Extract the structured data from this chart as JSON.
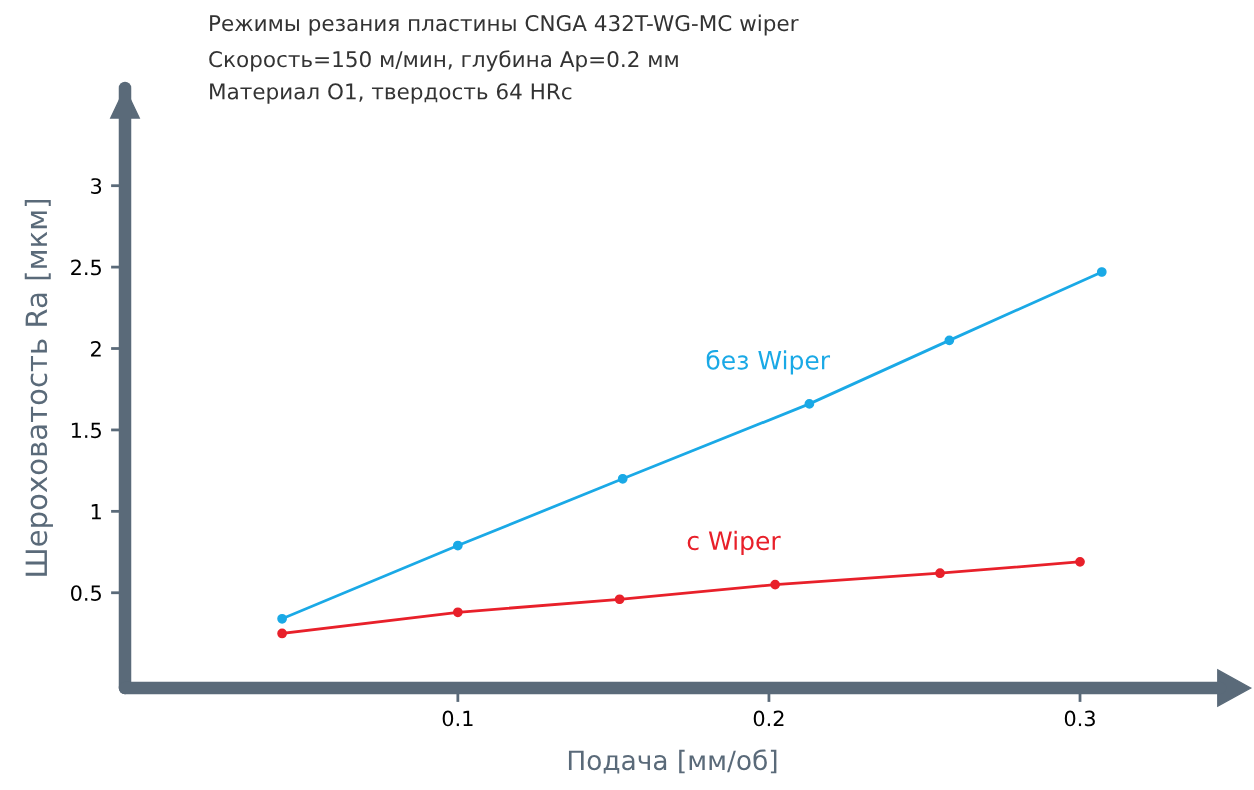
{
  "chart_data": {
    "type": "line",
    "title": "Режимы резания пластины CNGA 432T-WG-MC wiper",
    "subtitle": "Скорость=150 м/мин, глубина Ap=0.2 мм\nМатериал O1, твердость 64 HRc",
    "xlabel": "Подача [мм/об]",
    "ylabel": "Шероховатость Ra [мкм]",
    "xlim": [
      -0.007,
      0.345
    ],
    "ylim": [
      -0.085,
      3.6
    ],
    "xticks": [
      0.1,
      0.2,
      0.3
    ],
    "yticks": [
      0.5,
      1,
      1.5,
      2,
      2.5,
      3
    ],
    "series": [
      {
        "name": "без Wiper",
        "color": "#1aa9e6",
        "x": [
          0.0435,
          0.1,
          0.153,
          0.213,
          0.258,
          0.307
        ],
        "values": [
          0.34,
          0.79,
          1.2,
          1.66,
          2.05,
          2.47
        ]
      },
      {
        "name": "с Wiper",
        "color": "#e8202a",
        "x": [
          0.0435,
          0.1,
          0.152,
          0.202,
          0.255,
          0.3
        ],
        "values": [
          0.25,
          0.38,
          0.46,
          0.55,
          0.62,
          0.69
        ]
      }
    ],
    "marker": "circle",
    "line_style": "solid",
    "grid": false,
    "legend": false
  }
}
